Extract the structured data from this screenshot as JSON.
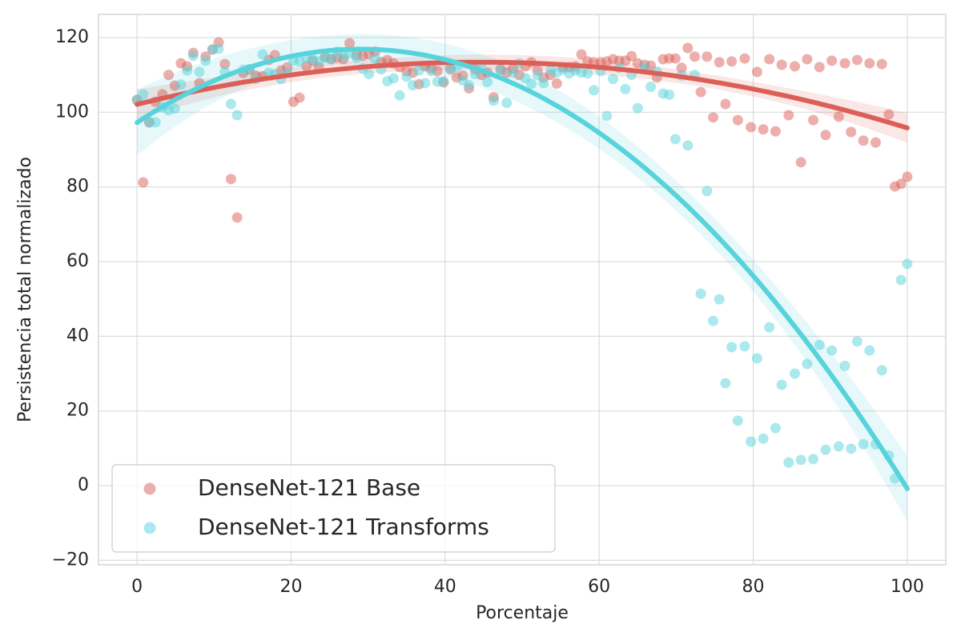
{
  "chart_data": {
    "type": "scatter",
    "x_label": "Porcentaje",
    "y_label": "Persistencia total normalizado",
    "xlim": [
      -5,
      105
    ],
    "ylim": [
      -21.2,
      126.2
    ],
    "xticks": [
      0,
      20,
      40,
      60,
      80,
      100
    ],
    "yticks": [
      {
        "value": -20,
        "label": "−20"
      },
      0,
      20,
      40,
      60,
      80,
      100,
      120
    ],
    "grid": true,
    "legend": "lower left",
    "fit": "quadratic",
    "x": [
      0,
      0.8,
      1.6,
      2.4,
      3.3,
      4.1,
      4.9,
      5.7,
      6.5,
      7.3,
      8.1,
      8.9,
      9.8,
      10.6,
      11.4,
      12.2,
      13,
      13.8,
      14.6,
      15.4,
      16.3,
      17.1,
      17.9,
      18.7,
      19.5,
      20.3,
      21.1,
      22,
      22.8,
      23.6,
      24.4,
      25.2,
      26,
      26.8,
      27.6,
      28.5,
      29.3,
      30.1,
      30.9,
      31.7,
      32.5,
      33.3,
      34.1,
      35,
      35.8,
      36.6,
      37.4,
      38.2,
      39,
      39.8,
      40.7,
      41.5,
      42.3,
      43.1,
      43.9,
      44.7,
      45.5,
      46.3,
      47.2,
      48,
      48.8,
      49.6,
      50.4,
      51.2,
      52,
      52.8,
      53.7,
      54.5,
      55.3,
      56.1,
      56.9,
      57.7,
      58.5,
      59.3,
      60.2,
      61,
      61.8,
      62.6,
      63.4,
      64.2,
      65,
      65.9,
      66.7,
      67.5,
      68.3,
      69.1,
      69.9,
      70.7,
      71.5,
      72.4,
      73.2,
      74,
      74.8,
      75.6,
      76.4,
      77.2,
      78,
      78.9,
      79.7,
      80.5,
      81.3,
      82.1,
      82.9,
      83.7,
      84.6,
      85.4,
      86.2,
      87,
      87.8,
      88.6,
      89.4,
      90.2,
      91.1,
      91.9,
      92.7,
      93.5,
      94.3,
      95.1,
      95.9,
      96.7,
      97.6,
      98.4,
      99.2,
      100
    ],
    "series": [
      {
        "name": "DenseNet-121 Base",
        "color": "#db5f57",
        "values": [
          103.3,
          81.2,
          97.3,
          102.8,
          104.8,
          110,
          107.1,
          113.1,
          112.3,
          115.9,
          107.8,
          114.9,
          116.8,
          118.7,
          112.9,
          82.1,
          71.8,
          110.5,
          111.5,
          109.8,
          109.6,
          114,
          115.3,
          111.2,
          112,
          102.8,
          103.9,
          112.3,
          113.8,
          112.1,
          114.9,
          114.2,
          114.6,
          114.2,
          118.5,
          115.3,
          115.1,
          115.5,
          116.2,
          113.4,
          114,
          113.1,
          112.1,
          111,
          110.6,
          107.5,
          112.3,
          111.7,
          111,
          108,
          111.5,
          109.3,
          109.8,
          106.4,
          111.5,
          110,
          110.6,
          104,
          111.5,
          110.6,
          111.7,
          110,
          112.3,
          113.4,
          111.2,
          109.3,
          110,
          107.7,
          112.1,
          112.1,
          112.3,
          115.5,
          113.6,
          113.4,
          113.4,
          113.6,
          114.2,
          113.8,
          113.8,
          115,
          113.1,
          112.7,
          112.5,
          109.3,
          114.2,
          114.4,
          114.4,
          111.9,
          117.2,
          114.9,
          105.4,
          114.9,
          98.6,
          113.4,
          102.2,
          113.6,
          97.9,
          114.4,
          96,
          110.8,
          95.4,
          114.2,
          94.9,
          112.7,
          99.2,
          112.3,
          86.6,
          114.2,
          97.9,
          112.1,
          93.9,
          113.8,
          98.8,
          113.1,
          94.7,
          114,
          92.4,
          113.1,
          91.9,
          112.9,
          99.4,
          80.1,
          80.8,
          82.7
        ]
      },
      {
        "name": "DenseNet-121 Transforms",
        "color": "#57d3db",
        "values": [
          103.3,
          104.8,
          97.3,
          97.3,
          101.4,
          100.5,
          101,
          107.4,
          111.2,
          115.1,
          110.8,
          113.8,
          116.8,
          117,
          110.8,
          102.2,
          99.2,
          111.4,
          111.5,
          108.9,
          115.5,
          110.6,
          110.2,
          108.9,
          110.5,
          113.8,
          113.6,
          114.6,
          114.2,
          113.6,
          114.4,
          114.4,
          116.2,
          114.9,
          115.8,
          114.6,
          111.7,
          110.2,
          114.4,
          111.5,
          108.3,
          109.1,
          104.5,
          109.5,
          107.2,
          111.2,
          107.8,
          111,
          108.2,
          108.3,
          111.7,
          112.1,
          108.5,
          107.2,
          110.2,
          112.5,
          108.1,
          103.1,
          111.2,
          102.5,
          110.6,
          113.1,
          109.1,
          107.6,
          110,
          107.8,
          111.2,
          110.6,
          111.5,
          110.4,
          111.2,
          110.6,
          110.4,
          105.9,
          111,
          99,
          108.9,
          111.9,
          106.2,
          110,
          101.1,
          112.1,
          106.8,
          110.8,
          105,
          104.7,
          92.8,
          109.8,
          91.1,
          110,
          51.4,
          78.9,
          44.1,
          49.9,
          27.4,
          37.1,
          17.4,
          37.3,
          11.8,
          34.1,
          12.6,
          42.4,
          15.4,
          27,
          6.2,
          30,
          6.9,
          32.6,
          7.1,
          37.7,
          9.6,
          36.2,
          10.5,
          32.1,
          9.9,
          38.6,
          11.1,
          36.2,
          11.1,
          30.9,
          8.1,
          1.9,
          55.1,
          59.4
        ]
      }
    ]
  }
}
